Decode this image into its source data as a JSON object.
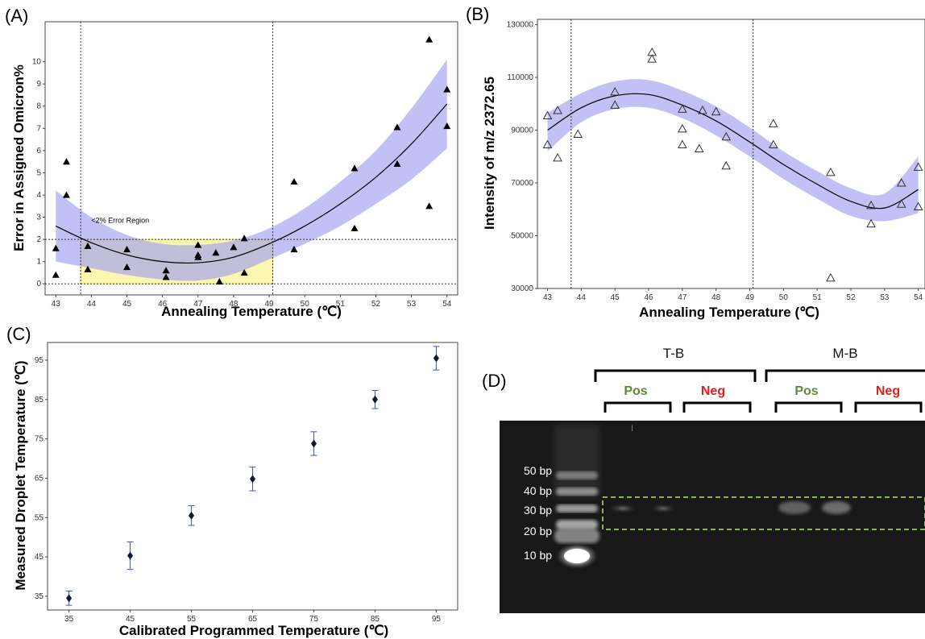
{
  "panels": {
    "a": {
      "letter": "(A)"
    },
    "b": {
      "letter": "(B)"
    },
    "c": {
      "letter": "(C)"
    },
    "d": {
      "letter": "(D)"
    }
  },
  "colors": {
    "band": "#9b9bf0",
    "highlight": "#fbf6b0",
    "highlight_border": "#f0e44a",
    "errorbar": "#3a4cd8",
    "gel_box": "#b6e85a"
  },
  "chart_data": [
    {
      "id": "A",
      "type": "scatter",
      "xlabel": "Annealing Temperature (℃)",
      "ylabel": "Error in Assigned Omicron%",
      "xlim": [
        42.7,
        54.3
      ],
      "ylim": [
        -0.5,
        11.8
      ],
      "xticks": [
        43,
        44,
        45,
        46,
        47,
        48,
        49,
        50,
        51,
        52,
        53,
        54
      ],
      "yticks": [
        0,
        1,
        2,
        3,
        4,
        5,
        6,
        7,
        8,
        9,
        10
      ],
      "marker": "filled-triangle",
      "points": [
        [
          43.0,
          1.6
        ],
        [
          43.0,
          0.4
        ],
        [
          43.3,
          5.5
        ],
        [
          43.3,
          4.0
        ],
        [
          43.9,
          1.7
        ],
        [
          43.9,
          0.65
        ],
        [
          45.0,
          1.55
        ],
        [
          45.0,
          0.75
        ],
        [
          46.1,
          0.6
        ],
        [
          46.1,
          0.3
        ],
        [
          47.0,
          1.75
        ],
        [
          47.0,
          1.3
        ],
        [
          47.0,
          1.2
        ],
        [
          47.5,
          1.4
        ],
        [
          47.6,
          0.1
        ],
        [
          48.0,
          1.65
        ],
        [
          48.3,
          2.05
        ],
        [
          48.3,
          0.5
        ],
        [
          49.7,
          4.6
        ],
        [
          49.7,
          1.55
        ],
        [
          51.4,
          5.2
        ],
        [
          51.4,
          2.5
        ],
        [
          52.6,
          7.05
        ],
        [
          52.6,
          5.4
        ],
        [
          53.5,
          11.0
        ],
        [
          53.5,
          3.5
        ],
        [
          54.0,
          8.75
        ],
        [
          54.0,
          7.1
        ]
      ],
      "fit_curve": [
        [
          43.0,
          2.6
        ],
        [
          44.0,
          1.85
        ],
        [
          45.0,
          1.3
        ],
        [
          46.0,
          1.0
        ],
        [
          47.0,
          0.95
        ],
        [
          48.0,
          1.2
        ],
        [
          49.0,
          1.8
        ],
        [
          50.0,
          2.6
        ],
        [
          51.0,
          3.6
        ],
        [
          52.0,
          4.8
        ],
        [
          53.0,
          6.3
        ],
        [
          54.0,
          8.1
        ]
      ],
      "band_upper": [
        [
          43.0,
          4.2
        ],
        [
          44.0,
          3.0
        ],
        [
          45.0,
          2.2
        ],
        [
          46.0,
          1.8
        ],
        [
          47.0,
          1.75
        ],
        [
          48.0,
          1.95
        ],
        [
          49.0,
          2.5
        ],
        [
          50.0,
          3.4
        ],
        [
          51.0,
          4.6
        ],
        [
          52.0,
          6.0
        ],
        [
          53.0,
          7.9
        ],
        [
          54.0,
          10.1
        ]
      ],
      "band_lower": [
        [
          43.0,
          1.0
        ],
        [
          44.0,
          0.7
        ],
        [
          45.0,
          0.4
        ],
        [
          46.0,
          0.2
        ],
        [
          47.0,
          0.15
        ],
        [
          48.0,
          0.45
        ],
        [
          49.0,
          1.1
        ],
        [
          50.0,
          1.8
        ],
        [
          51.0,
          2.6
        ],
        [
          52.0,
          3.6
        ],
        [
          53.0,
          4.7
        ],
        [
          54.0,
          6.1
        ]
      ],
      "vlines": [
        43.7,
        49.1
      ],
      "hlines": [
        2,
        0
      ],
      "highlight_region": {
        "x": [
          43.7,
          49.1
        ],
        "y": [
          0,
          2
        ],
        "label": "<2% Error Region"
      }
    },
    {
      "id": "B",
      "type": "scatter",
      "xlabel": "Annealing Temperature (℃)",
      "ylabel": "Intensity of m/z 2372.65",
      "xlim": [
        42.7,
        54.2
      ],
      "ylim": [
        30000,
        132000
      ],
      "xticks": [
        43,
        44,
        45,
        46,
        47,
        48,
        49,
        50,
        51,
        52,
        53,
        54
      ],
      "yticks": [
        30000,
        50000,
        70000,
        90000,
        110000,
        130000
      ],
      "marker": "open-triangle",
      "points": [
        [
          43.0,
          95500
        ],
        [
          43.0,
          84500
        ],
        [
          43.3,
          97500
        ],
        [
          43.3,
          79500
        ],
        [
          43.9,
          88500
        ],
        [
          45.0,
          104500
        ],
        [
          45.0,
          99500
        ],
        [
          46.1,
          119500
        ],
        [
          46.1,
          117000
        ],
        [
          47.0,
          98000
        ],
        [
          47.0,
          90500
        ],
        [
          47.0,
          84500
        ],
        [
          47.5,
          83000
        ],
        [
          47.6,
          97500
        ],
        [
          48.0,
          97000
        ],
        [
          48.3,
          87500
        ],
        [
          48.3,
          76500
        ],
        [
          49.7,
          92500
        ],
        [
          49.7,
          84500
        ],
        [
          51.4,
          74000
        ],
        [
          51.4,
          34000
        ],
        [
          52.6,
          61500
        ],
        [
          52.6,
          54500
        ],
        [
          53.5,
          70000
        ],
        [
          53.5,
          62000
        ],
        [
          54.0,
          76000
        ],
        [
          54.0,
          61000
        ]
      ],
      "fit_curve": [
        [
          43.0,
          90000
        ],
        [
          44.0,
          98500
        ],
        [
          45.0,
          103000
        ],
        [
          46.0,
          103500
        ],
        [
          47.0,
          99500
        ],
        [
          48.0,
          93500
        ],
        [
          49.0,
          85500
        ],
        [
          50.0,
          77000
        ],
        [
          51.0,
          69500
        ],
        [
          52.0,
          63000
        ],
        [
          53.0,
          60500
        ],
        [
          54.0,
          67500
        ]
      ],
      "band_upper": [
        [
          43.0,
          96500
        ],
        [
          44.0,
          104000
        ],
        [
          45.0,
          108500
        ],
        [
          46.0,
          109000
        ],
        [
          47.0,
          105000
        ],
        [
          48.0,
          99000
        ],
        [
          49.0,
          91000
        ],
        [
          50.0,
          82000
        ],
        [
          51.0,
          74500
        ],
        [
          52.0,
          68000
        ],
        [
          53.0,
          66000
        ],
        [
          54.0,
          80000
        ]
      ],
      "band_lower": [
        [
          43.0,
          82000
        ],
        [
          44.0,
          93000
        ],
        [
          45.0,
          98000
        ],
        [
          46.0,
          98500
        ],
        [
          47.0,
          94500
        ],
        [
          48.0,
          88000
        ],
        [
          49.0,
          80000
        ],
        [
          50.0,
          71500
        ],
        [
          51.0,
          64000
        ],
        [
          52.0,
          57500
        ],
        [
          53.0,
          55500
        ],
        [
          54.0,
          58500
        ]
      ],
      "vlines": [
        43.7,
        49.1
      ]
    },
    {
      "id": "C",
      "type": "scatter",
      "xlabel": "Calibrated Programmed Temperature (℃)",
      "ylabel": "Measured Droplet Temperature (℃)",
      "xlim": [
        31.5,
        98.5
      ],
      "ylim": [
        31.5,
        99.5
      ],
      "xticks": [
        35,
        45,
        55,
        65,
        75,
        85,
        95
      ],
      "yticks": [
        35,
        45,
        55,
        65,
        75,
        85,
        95
      ],
      "marker": "filled-diamond",
      "points": [
        [
          35,
          34.5
        ],
        [
          45,
          45.3
        ],
        [
          55,
          55.5
        ],
        [
          65,
          64.8
        ],
        [
          75,
          73.8
        ],
        [
          85,
          85.0
        ],
        [
          95,
          95.5
        ]
      ],
      "errors": [
        1.8,
        3.5,
        2.5,
        3.0,
        3.0,
        2.3,
        3.0
      ]
    }
  ],
  "gel": {
    "groups": [
      {
        "label": "T-B",
        "pos": "Pos",
        "neg": "Neg"
      },
      {
        "label": "M-B",
        "pos": "Pos",
        "neg": "Neg"
      }
    ],
    "ladder": [
      "50 bp",
      "40 bp",
      "30 bp",
      "20 bp",
      "10 bp"
    ],
    "lane_mark": "I"
  }
}
